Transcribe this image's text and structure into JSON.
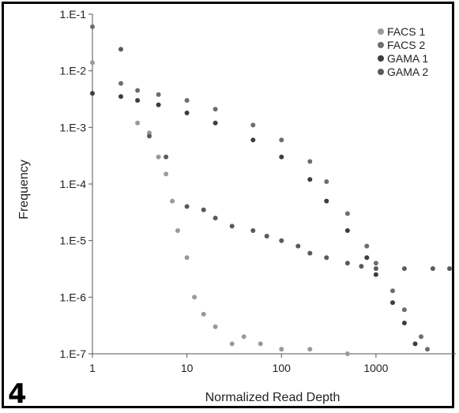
{
  "panel_label": "4",
  "colors": {
    "FACS 1": "#9a9a9a",
    "FACS 2": "#6e6e6e",
    "GAMA 1": "#3d3d3d",
    "GAMA 2": "#5a5a5a"
  },
  "chart_data": {
    "type": "scatter",
    "title": "",
    "xlabel": "Normalized Read Depth",
    "ylabel": "Frequency",
    "x_scale": "log",
    "y_scale": "log",
    "xlim": [
      1,
      7000
    ],
    "ylim": [
      1e-07,
      0.1
    ],
    "x_ticks": [
      1,
      10,
      100,
      1000
    ],
    "x_tick_labels": [
      "1",
      "10",
      "100",
      "1000"
    ],
    "y_ticks": [
      0.1,
      0.01,
      0.001,
      0.0001,
      1e-05,
      1e-06,
      1e-07
    ],
    "y_tick_labels": [
      "1.E-1",
      "1.E-2",
      "1.E-3",
      "1.E-4",
      "1.E-5",
      "1.E-6",
      "1.E-7"
    ],
    "grid": false,
    "legend_position": "top-right",
    "series": [
      {
        "name": "FACS 1",
        "points": [
          [
            1,
            0.014
          ],
          [
            3,
            0.0012
          ],
          [
            4,
            0.0008
          ],
          [
            5,
            0.0003
          ],
          [
            6,
            0.00015
          ],
          [
            7,
            5e-05
          ],
          [
            8,
            1.5e-05
          ],
          [
            10,
            5e-06
          ],
          [
            12,
            1e-06
          ],
          [
            15,
            5e-07
          ],
          [
            20,
            3e-07
          ],
          [
            30,
            1.5e-07
          ],
          [
            40,
            2e-07
          ],
          [
            60,
            1.5e-07
          ],
          [
            100,
            1.2e-07
          ],
          [
            200,
            1.2e-07
          ],
          [
            500,
            1e-07
          ]
        ]
      },
      {
        "name": "FACS 2",
        "points": [
          [
            1,
            0.06
          ],
          [
            2,
            0.006
          ],
          [
            3,
            0.0045
          ],
          [
            5,
            0.0038
          ],
          [
            10,
            0.003
          ],
          [
            20,
            0.0021
          ],
          [
            50,
            0.0011
          ],
          [
            100,
            0.0006
          ],
          [
            200,
            0.00025
          ],
          [
            300,
            0.00011
          ],
          [
            500,
            3e-05
          ],
          [
            800,
            8e-06
          ],
          [
            1000,
            4e-06
          ],
          [
            1500,
            1.3e-06
          ],
          [
            2000,
            6e-07
          ],
          [
            3000,
            2e-07
          ],
          [
            3500,
            1.2e-07
          ]
        ]
      },
      {
        "name": "GAMA 1",
        "points": [
          [
            1,
            0.004
          ],
          [
            2,
            0.0035
          ],
          [
            3,
            0.003
          ],
          [
            5,
            0.0025
          ],
          [
            10,
            0.0018
          ],
          [
            20,
            0.0012
          ],
          [
            50,
            0.0006
          ],
          [
            100,
            0.0003
          ],
          [
            200,
            0.00012
          ],
          [
            300,
            5e-05
          ],
          [
            500,
            1.5e-05
          ],
          [
            800,
            5e-06
          ],
          [
            1000,
            2.5e-06
          ],
          [
            1500,
            8e-07
          ],
          [
            2000,
            3.5e-07
          ],
          [
            2600,
            1.5e-07
          ]
        ]
      },
      {
        "name": "GAMA 2",
        "points": [
          [
            2,
            0.024
          ],
          [
            4,
            0.0007
          ],
          [
            6,
            0.0003
          ],
          [
            10,
            4e-05
          ],
          [
            15,
            3.5e-05
          ],
          [
            20,
            2.5e-05
          ],
          [
            30,
            1.8e-05
          ],
          [
            50,
            1.5e-05
          ],
          [
            70,
            1.2e-05
          ],
          [
            100,
            1e-05
          ],
          [
            150,
            8e-06
          ],
          [
            200,
            6e-06
          ],
          [
            300,
            5e-06
          ],
          [
            500,
            4e-06
          ],
          [
            700,
            3.5e-06
          ],
          [
            1000,
            3.2e-06
          ],
          [
            2000,
            3.2e-06
          ],
          [
            4000,
            3.2e-06
          ],
          [
            6000,
            3.2e-06
          ]
        ]
      }
    ]
  }
}
